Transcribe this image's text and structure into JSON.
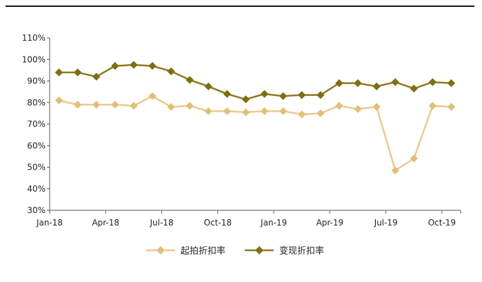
{
  "colors": {
    "series1": "#E8C98E",
    "series1_marker": "#E2BE78",
    "series2": "#8A7A1E",
    "series2_marker": "#7E6E14",
    "axis": "#555555",
    "rule": "#111111"
  },
  "chart_data": {
    "type": "line",
    "title": "",
    "xlabel": "",
    "ylabel": "",
    "ylim": [
      0.3,
      1.1
    ],
    "y_ticks": [
      "30%",
      "40%",
      "50%",
      "60%",
      "70%",
      "80%",
      "90%",
      "100%",
      "110%"
    ],
    "x_tick_labels": [
      "Jan-18",
      "Apr-18",
      "Jul-18",
      "Oct-18",
      "Jan-19",
      "Apr-19",
      "Jul-19",
      "Oct-19"
    ],
    "x_tick_months": [
      0,
      3,
      6,
      9,
      12,
      15,
      18,
      21
    ],
    "grid": false,
    "legend_position": "bottom-center",
    "x": [
      "Jan-18",
      "Feb-18",
      "Mar-18",
      "Apr-18",
      "May-18",
      "Jun-18",
      "Jul-18",
      "Aug-18",
      "Sep-18",
      "Oct-18",
      "Nov-18",
      "Dec-18",
      "Jan-19",
      "Feb-19",
      "Mar-19",
      "Apr-19",
      "May-19",
      "Jun-19",
      "Jul-19",
      "Aug-19",
      "Sep-19",
      "Oct-19"
    ],
    "series": [
      {
        "name": "起拍折扣率",
        "values": [
          0.81,
          0.79,
          0.79,
          0.79,
          0.785,
          0.83,
          0.78,
          0.785,
          0.76,
          0.76,
          0.755,
          0.76,
          0.76,
          0.745,
          0.75,
          0.785,
          0.77,
          0.78,
          0.485,
          0.54,
          0.785,
          0.78
        ]
      },
      {
        "name": "变现折扣率",
        "values": [
          0.94,
          0.94,
          0.92,
          0.97,
          0.975,
          0.97,
          0.945,
          0.905,
          0.875,
          0.84,
          0.815,
          0.84,
          0.83,
          0.835,
          0.835,
          0.89,
          0.89,
          0.875,
          0.895,
          0.865,
          0.895,
          0.89
        ]
      }
    ]
  }
}
